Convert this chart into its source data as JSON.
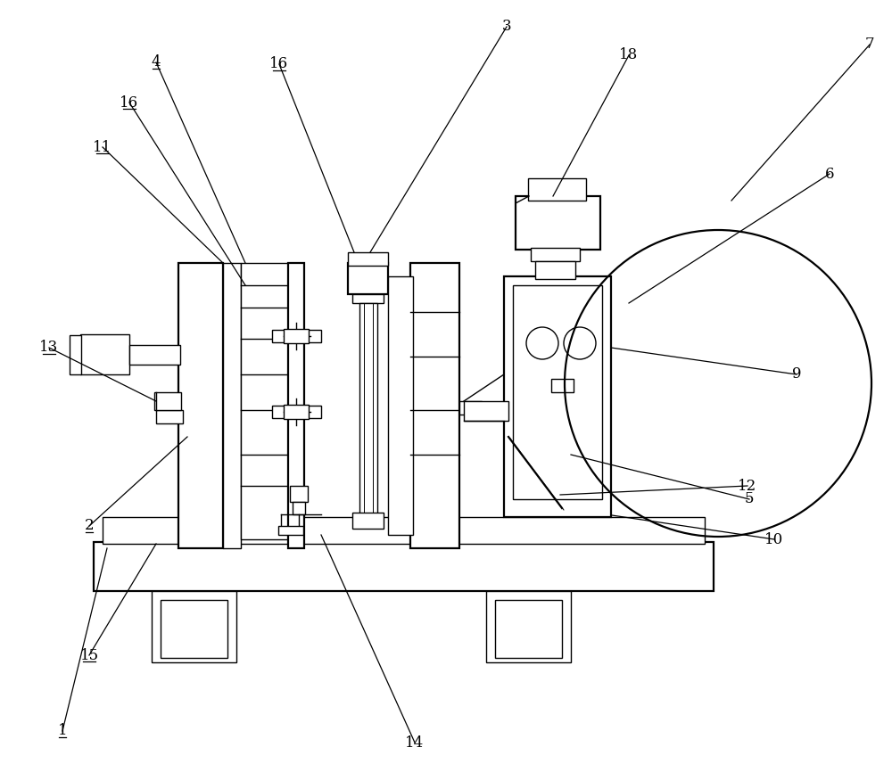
{
  "bg_color": "#ffffff",
  "lw": 1.0,
  "lw2": 1.6,
  "font_size": 12,
  "figsize": [
    10.0,
    8.66
  ]
}
